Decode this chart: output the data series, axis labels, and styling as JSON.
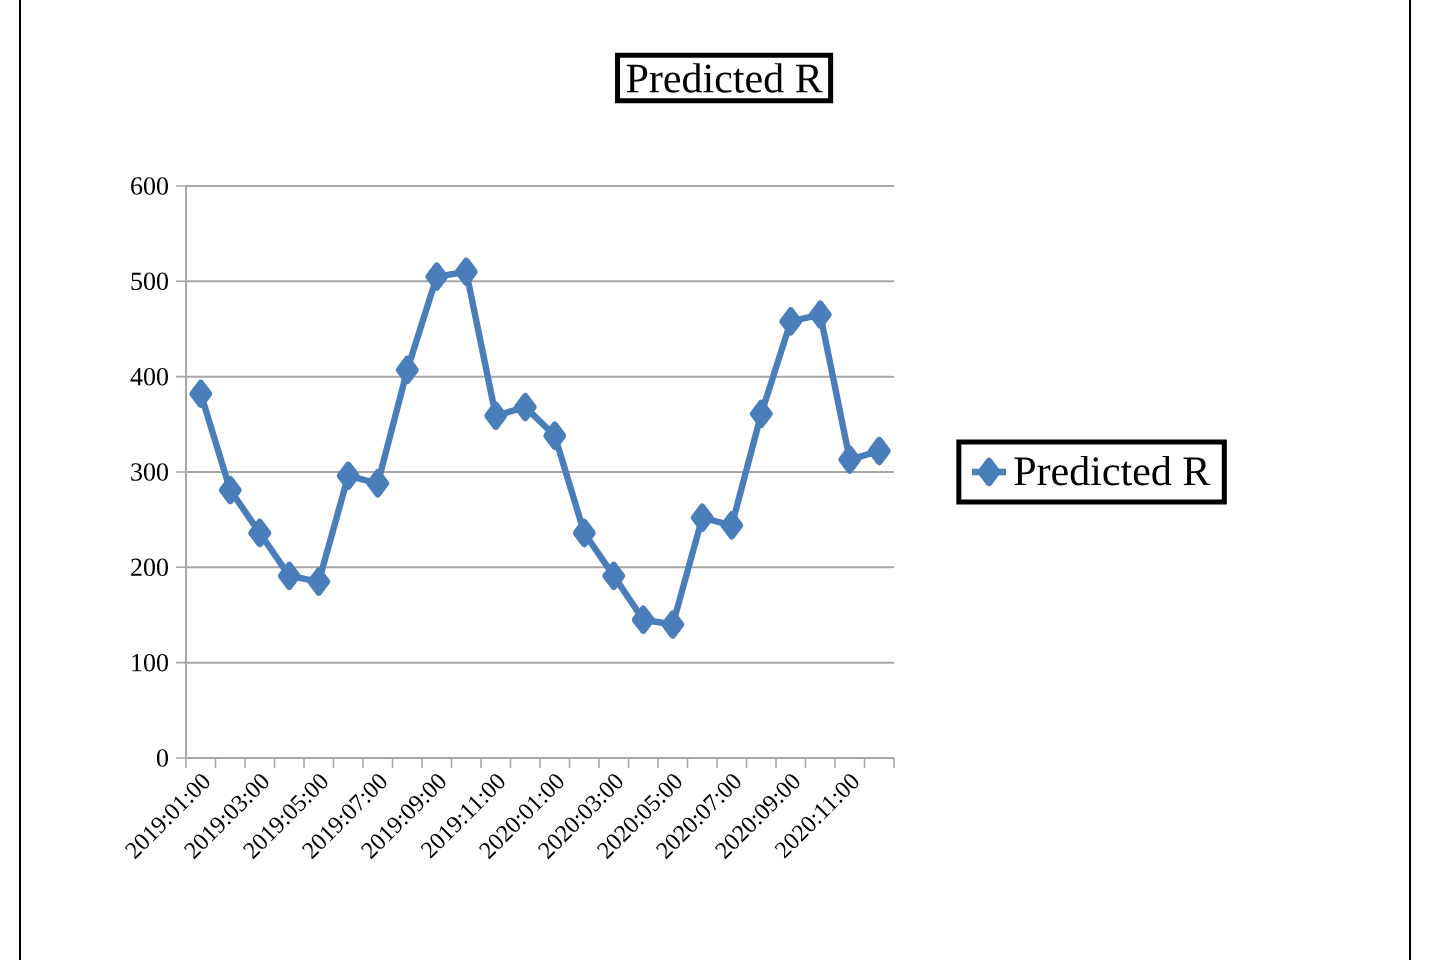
{
  "chart_data": {
    "type": "line",
    "title": "Predicted R",
    "categories": [
      "2019:01:00",
      null,
      "2019:03:00",
      null,
      "2019:05:00",
      null,
      "2019:07:00",
      null,
      "2019:09:00",
      null,
      "2019:11:00",
      null,
      "2020:01:00",
      null,
      "2020:03:00",
      null,
      "2020:05:00",
      null,
      "2020:07:00",
      null,
      "2020:09:00",
      null,
      "2020:11:00",
      null
    ],
    "series": [
      {
        "name": "Predicted R",
        "color": "#4a7ebb",
        "values": [
          382,
          281,
          236,
          191,
          185,
          296,
          288,
          407,
          505,
          510,
          359,
          368,
          338,
          236,
          191,
          145,
          140,
          252,
          244,
          361,
          458,
          465,
          313,
          322
        ]
      }
    ],
    "ylim": [
      0,
      600
    ],
    "yticks": [
      0,
      100,
      200,
      300,
      400,
      500,
      600
    ],
    "grid": "y",
    "legend": "right",
    "marker": "diamond",
    "line_style": "solid"
  }
}
